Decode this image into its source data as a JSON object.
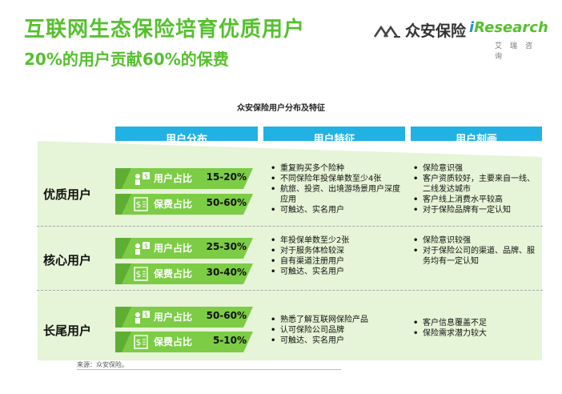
{
  "title": "互联网生态保险培育优质用户",
  "subtitle": "20%的用户贡献60%的保费",
  "logo": {
    "zhongan": "众安保险",
    "iresearch_i": "i",
    "iresearch_rest": "Research",
    "iresearch_cn": "艾瑞咨询"
  },
  "table_title": "众安保险用户分布及特征",
  "headers": [
    "用户分布",
    "用户特征",
    "用户刻画"
  ],
  "colors": {
    "green": "#56c02f",
    "tag_green": "#7ccc45",
    "header_blue": "#22b1e3",
    "band_light": "#e6f4d7"
  },
  "segments": [
    {
      "label": "优质用户",
      "tags": [
        {
          "icon": "user-money-icon",
          "label": "用户占比",
          "value": "15-20%"
        },
        {
          "icon": "premium-icon",
          "label": "保费占比",
          "value": "50-60%"
        }
      ],
      "features": [
        "重复购买多个险种",
        "不同保险年投保单数至少4张",
        "航旅、投资、出境游场景用户深度应用",
        "可触达、实名用户"
      ],
      "profile": [
        "保险意识强",
        "客户资质较好，主要来自一线、二线发达城市",
        "客户线上消费水平较高",
        "对于保险品牌有一定认知"
      ]
    },
    {
      "label": "核心用户",
      "tags": [
        {
          "icon": "user-money-icon",
          "label": "用户占比",
          "value": "25-30%"
        },
        {
          "icon": "premium-icon",
          "label": "保费占比",
          "value": "30-40%"
        }
      ],
      "features": [
        "年投保单数至少2张",
        "对于服务体检较深",
        "自有渠道注册用户",
        "可触达、实名用户"
      ],
      "profile": [
        "保险意识较强",
        "对于保险公司的渠道、品牌、服务均有一定认知"
      ]
    },
    {
      "label": "长尾用户",
      "tags": [
        {
          "icon": "user-money-icon",
          "label": "用户占比",
          "value": "50-60%"
        },
        {
          "icon": "premium-icon",
          "label": "保费占比",
          "value": "5-10%"
        }
      ],
      "features": [
        "熟悉了解互联网保险产品",
        "认可保险公司品牌",
        "可触达、实名用户"
      ],
      "profile": [
        "客户信息覆盖不足",
        "保险需求潜力较大"
      ]
    }
  ],
  "source": "来源：众安保险。"
}
